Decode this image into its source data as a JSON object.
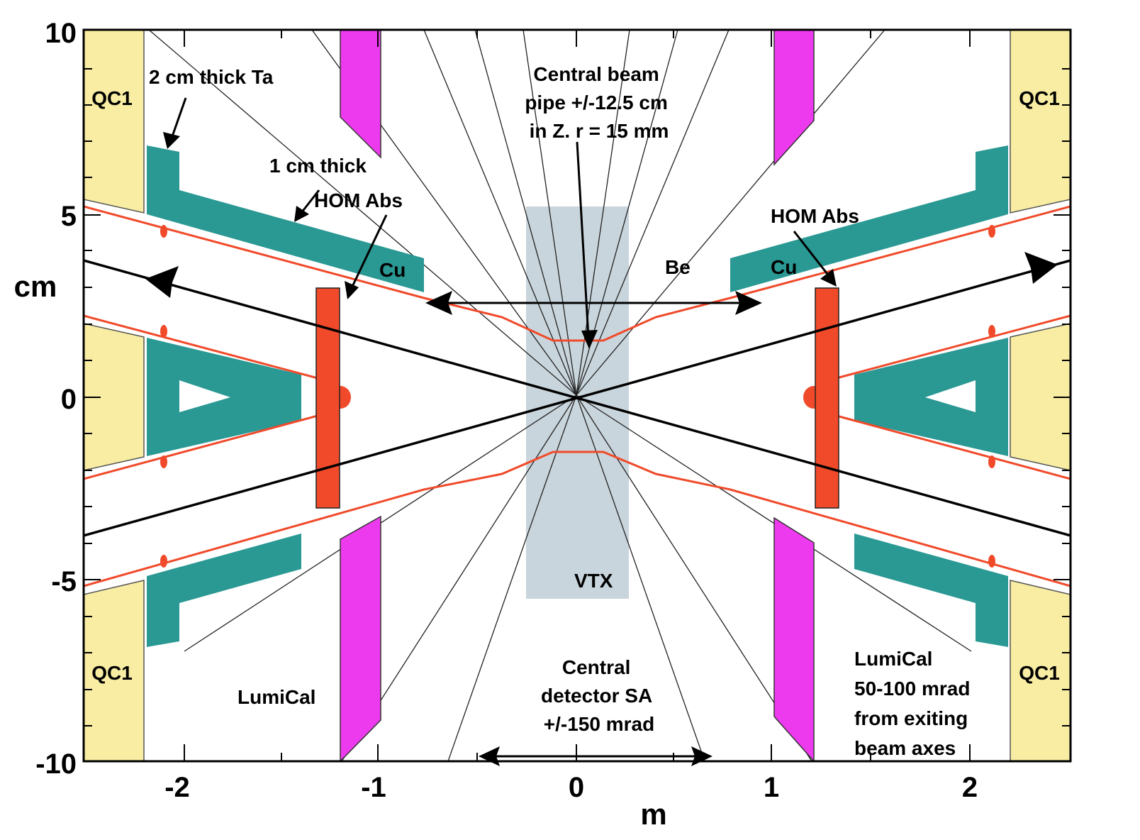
{
  "axes": {
    "x_unit": "m",
    "y_unit": "cm",
    "x_ticks": [
      "-2",
      "-1",
      "0",
      "1",
      "2"
    ],
    "y_ticks": [
      "10",
      "5",
      "0",
      "-5",
      "-10"
    ]
  },
  "colors": {
    "qc1_fill": "#f8eda2",
    "absorber_teal": "#2a9893",
    "beampipe_red": "#f04a2a",
    "lumical_magenta": "#ee3aee",
    "vtx_gray": "#c9d5dc",
    "beam_line": "#000000"
  },
  "labels": {
    "qc1_top_left": "QC1",
    "qc1_top_right": "QC1",
    "qc1_bottom_left": "QC1",
    "qc1_bottom_right": "QC1",
    "ta_note": "2 cm thick Ta",
    "thick_note": "1 cm thick",
    "hom_left": "HOM Abs",
    "hom_right": "HOM Abs",
    "cu_left": "Cu",
    "cu_right": "Cu",
    "be": "Be",
    "central_pipe_1": "Central beam",
    "central_pipe_2": "pipe +/-12.5 cm",
    "central_pipe_3": "in Z. r = 15 mm",
    "vtx": "VTX",
    "lumical_left": "LumiCal",
    "central_det_1": "Central",
    "central_det_2": "detector SA",
    "central_det_3": "+/-150 mrad",
    "lumical_right_1": "LumiCal",
    "lumical_right_2": "50-100 mrad",
    "lumical_right_3": "from exiting",
    "lumical_right_4": "beam axes"
  }
}
